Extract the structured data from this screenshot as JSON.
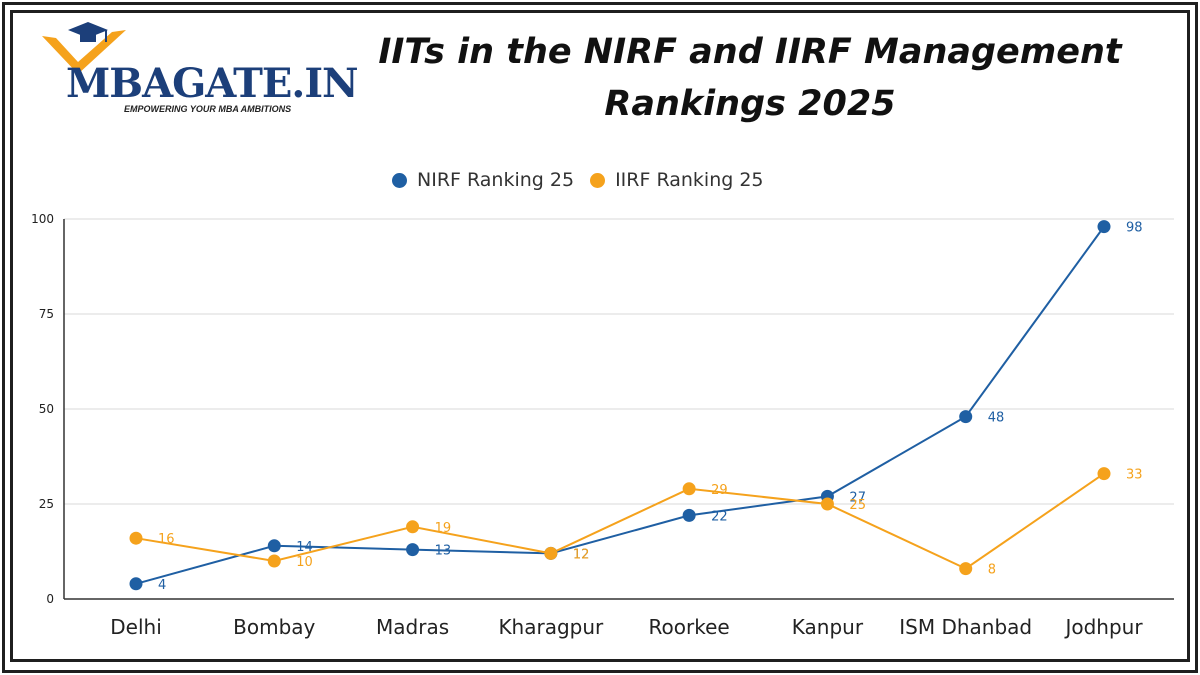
{
  "header": {
    "logo_text_1": "MBA",
    "logo_text_2": "GATE.IN",
    "logo_tagline": "EMPOWERING YOUR MBA AMBITIONS",
    "title": "IITs in the NIRF and IIRF Management Rankings 2025"
  },
  "colors": {
    "nirf": "#1f5fa3",
    "iirf": "#f5a21c",
    "grid": "#d9d9d9",
    "axis": "#333333",
    "logo_accent": "#f5a21c",
    "logo_dark": "#1c3f7a"
  },
  "chart_data": {
    "type": "line",
    "title": "IITs in the NIRF and IIRF Management Rankings 2025",
    "xlabel": "",
    "ylabel": "",
    "categories": [
      "Delhi",
      "Bombay",
      "Madras",
      "Kharagpur",
      "Roorkee",
      "Kanpur",
      "ISM Dhanbad",
      "Jodhpur"
    ],
    "series": [
      {
        "name": "NIRF Ranking 25",
        "values": [
          4,
          14,
          13,
          12,
          22,
          27,
          48,
          98
        ]
      },
      {
        "name": "IIRF Ranking 25",
        "values": [
          16,
          10,
          19,
          12,
          29,
          25,
          8,
          33
        ]
      }
    ],
    "ylim": [
      0,
      100
    ],
    "yticks": [
      0,
      25,
      50,
      75,
      100
    ],
    "grid": true,
    "legend_position": "top-center",
    "data_labels": true
  }
}
